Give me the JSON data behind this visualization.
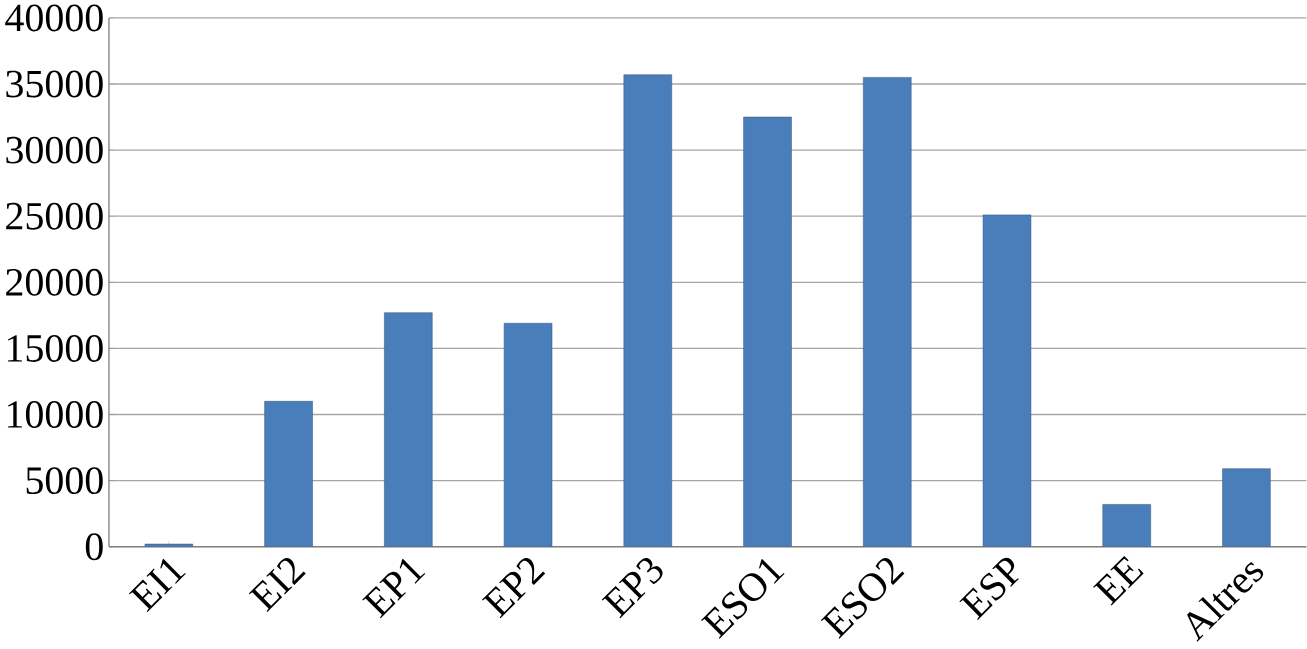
{
  "chart_data": {
    "type": "bar",
    "categories": [
      "EI1",
      "EI2",
      "EP1",
      "EP2",
      "EP3",
      "ESO1",
      "ESO2",
      "ESP",
      "EE",
      "Altres"
    ],
    "values": [
      200,
      11000,
      17700,
      16900,
      35700,
      32500,
      35500,
      25100,
      3200,
      5900
    ],
    "color": "#4a7ebb",
    "ylim": [
      0,
      40000
    ],
    "yticks": [
      0,
      5000,
      10000,
      15000,
      20000,
      25000,
      30000,
      35000,
      40000
    ],
    "grid": "y"
  }
}
